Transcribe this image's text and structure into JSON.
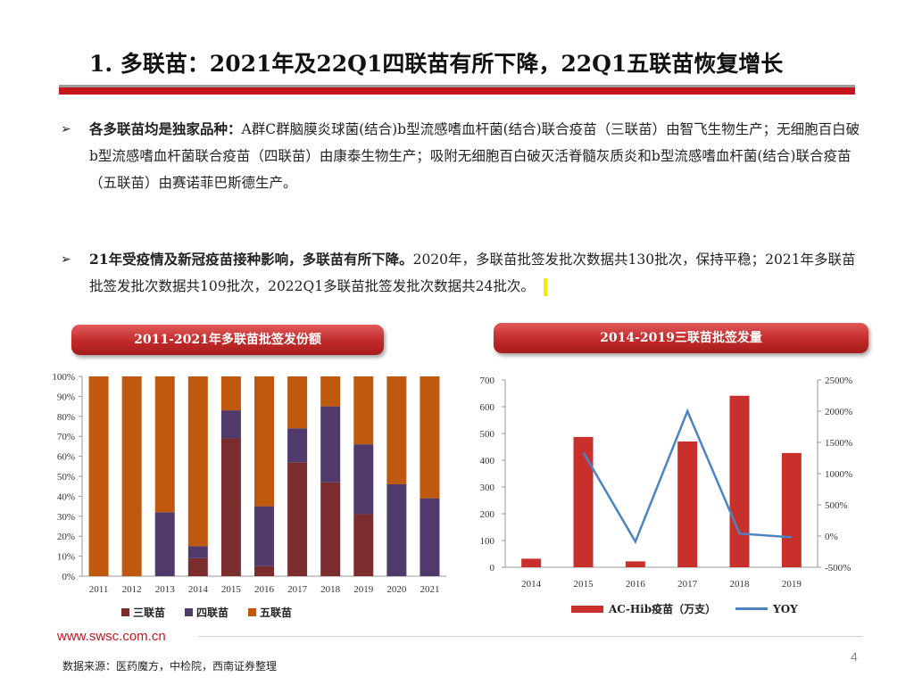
{
  "title": "1. 多联苗：2021年及22Q1四联苗有所下降，22Q1五联苗恢复增长",
  "bullets": [
    {
      "lead": "各多联苗均是独家品种：",
      "body": "A群C群脑膜炎球菌(结合)b型流感嗜血杆菌(结合)联合疫苗（三联苗）由智飞生物生产；无细胞百白破b型流感嗜血杆菌联合疫苗（四联苗）由康泰生物生产；吸附无细胞百白破灭活脊髓灰质炎和b型流感嗜血杆菌(结合)联合疫苗（五联苗）由赛诺菲巴斯德生产。"
    },
    {
      "lead": "21年受疫情及新冠疫苗接种影响，多联苗有所下降。",
      "body": "2020年，多联苗批签发批次数据共130批次，保持平稳；2021年多联苗批签发批次数据共109批次，2022Q1多联苗批签发批次数据共24批次。"
    }
  ],
  "chart_data": [
    {
      "type": "bar",
      "stacked": true,
      "title": "2011-2021年多联苗批签发份额",
      "categories": [
        "2011",
        "2012",
        "2013",
        "2014",
        "2015",
        "2016",
        "2017",
        "2018",
        "2019",
        "2020",
        "2021"
      ],
      "y_ticks": [
        "0%",
        "10%",
        "20%",
        "30%",
        "40%",
        "50%",
        "60%",
        "70%",
        "80%",
        "90%",
        "100%"
      ],
      "ylim": [
        0,
        100
      ],
      "series": [
        {
          "name": "三联苗",
          "color": "#7b2c2c",
          "values": [
            0,
            0,
            0,
            9,
            69,
            5,
            57,
            47,
            31,
            0,
            0
          ]
        },
        {
          "name": "四联苗",
          "color": "#4f3a6b",
          "values": [
            0,
            0,
            32,
            6,
            14,
            30,
            17,
            38,
            35,
            46,
            39
          ]
        },
        {
          "name": "五联苗",
          "color": "#c0580d",
          "values": [
            100,
            100,
            68,
            85,
            17,
            65,
            26,
            15,
            34,
            54,
            61
          ]
        }
      ],
      "legend_position": "bottom",
      "grid": false
    },
    {
      "type": "bar-line",
      "title": "2014-2019三联苗批签发量",
      "categories": [
        "2014",
        "2015",
        "2016",
        "2017",
        "2018",
        "2019"
      ],
      "y_left_ticks": [
        "0",
        "100",
        "200",
        "300",
        "400",
        "500",
        "600",
        "700"
      ],
      "y_left_lim": [
        0,
        700
      ],
      "y_right_ticks": [
        "-500%",
        "0%",
        "500%",
        "1000%",
        "1500%",
        "2000%",
        "2500%"
      ],
      "y_right_lim": [
        -500,
        2500
      ],
      "series": [
        {
          "name": "AC-Hib疫苗（万支）",
          "type": "bar",
          "axis": "left",
          "color": "#c9302c",
          "values": [
            32,
            487,
            22,
            470,
            641,
            427
          ]
        },
        {
          "name": "YOY",
          "type": "line",
          "axis": "right",
          "color": "#4a84c4",
          "values": [
            null,
            1340,
            -90,
            2000,
            40,
            -20
          ]
        }
      ],
      "legend_position": "bottom",
      "grid": false
    }
  ],
  "footer": {
    "url": "www.swsc.com.cn",
    "page": "4",
    "source": "数据来源：医药魔方，中检院，西南证券整理"
  }
}
